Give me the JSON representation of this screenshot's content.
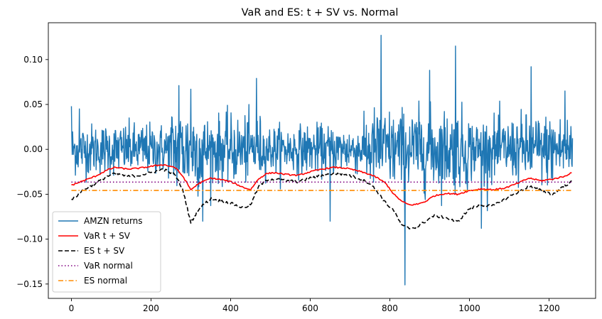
{
  "chart_data": {
    "type": "line",
    "title": "VaR and ES: t + SV vs. Normal",
    "xlabel": "",
    "ylabel": "",
    "xlim": [
      -58,
      1317
    ],
    "ylim": [
      -0.166,
      0.141
    ],
    "xticks": [
      0,
      200,
      400,
      600,
      800,
      1000,
      1200
    ],
    "xtick_labels": [
      "0",
      "200",
      "400",
      "600",
      "800",
      "1000",
      "1200"
    ],
    "yticks": [
      -0.15,
      -0.1,
      -0.05,
      0.0,
      0.05,
      0.1
    ],
    "ytick_labels": [
      "−0.15",
      "−0.10",
      "−0.05",
      "0.00",
      "0.05",
      "0.10"
    ],
    "grid": false,
    "legend_position": "lower-left",
    "n_points": 1260,
    "series": [
      {
        "name": "AMZN returns",
        "color": "#1f77b4",
        "style": "solid",
        "description_points": [
          [
            0,
            0.048
          ],
          [
            20,
            0.045
          ],
          [
            270,
            0.071
          ],
          [
            300,
            0.067
          ],
          [
            330,
            -0.08
          ],
          [
            465,
            0.079
          ],
          [
            650,
            -0.08
          ],
          [
            778,
            0.127
          ],
          [
            838,
            -0.151
          ],
          [
            900,
            0.088
          ],
          [
            965,
            0.115
          ],
          [
            1030,
            -0.088
          ],
          [
            1155,
            0.092
          ],
          [
            1240,
            0.065
          ]
        ]
      },
      {
        "name": "VaR t + SV",
        "color": "#ff0000",
        "style": "solid",
        "x": [
          0,
          30,
          60,
          90,
          110,
          140,
          170,
          200,
          230,
          260,
          280,
          300,
          320,
          350,
          380,
          400,
          430,
          450,
          470,
          490,
          510,
          540,
          570,
          600,
          630,
          660,
          690,
          720,
          750,
          770,
          790,
          810,
          830,
          850,
          870,
          890,
          910,
          940,
          970,
          1000,
          1030,
          1060,
          1090,
          1120,
          1150,
          1180,
          1210,
          1240,
          1259
        ],
        "values": [
          -0.04,
          -0.035,
          -0.03,
          -0.023,
          -0.02,
          -0.022,
          -0.021,
          -0.019,
          -0.017,
          -0.02,
          -0.03,
          -0.045,
          -0.038,
          -0.032,
          -0.034,
          -0.036,
          -0.042,
          -0.045,
          -0.033,
          -0.027,
          -0.026,
          -0.028,
          -0.029,
          -0.025,
          -0.022,
          -0.02,
          -0.021,
          -0.024,
          -0.028,
          -0.032,
          -0.038,
          -0.05,
          -0.058,
          -0.062,
          -0.061,
          -0.058,
          -0.052,
          -0.049,
          -0.05,
          -0.046,
          -0.044,
          -0.045,
          -0.043,
          -0.038,
          -0.032,
          -0.035,
          -0.033,
          -0.03,
          -0.025
        ]
      },
      {
        "name": "ES t + SV",
        "color": "#000000",
        "style": "dashed",
        "x": [
          0,
          30,
          60,
          90,
          110,
          140,
          170,
          200,
          230,
          260,
          280,
          300,
          320,
          350,
          380,
          400,
          430,
          450,
          470,
          490,
          510,
          540,
          570,
          600,
          630,
          660,
          690,
          720,
          750,
          770,
          790,
          810,
          830,
          850,
          870,
          890,
          910,
          940,
          970,
          1000,
          1030,
          1060,
          1090,
          1120,
          1150,
          1180,
          1210,
          1240,
          1259
        ],
        "values": [
          -0.057,
          -0.045,
          -0.038,
          -0.03,
          -0.027,
          -0.03,
          -0.029,
          -0.026,
          -0.022,
          -0.028,
          -0.045,
          -0.082,
          -0.066,
          -0.055,
          -0.058,
          -0.06,
          -0.065,
          -0.062,
          -0.042,
          -0.034,
          -0.033,
          -0.035,
          -0.036,
          -0.032,
          -0.029,
          -0.027,
          -0.028,
          -0.032,
          -0.038,
          -0.048,
          -0.06,
          -0.068,
          -0.085,
          -0.088,
          -0.086,
          -0.08,
          -0.074,
          -0.076,
          -0.081,
          -0.066,
          -0.062,
          -0.063,
          -0.055,
          -0.048,
          -0.041,
          -0.046,
          -0.05,
          -0.04,
          -0.036
        ]
      },
      {
        "name": "VaR normal",
        "color": "#800080",
        "style": "dotted",
        "x": [
          0,
          1259
        ],
        "values": [
          -0.0365,
          -0.0365
        ]
      },
      {
        "name": "ES normal",
        "color": "#ff8c00",
        "style": "dashdot",
        "x": [
          0,
          1259
        ],
        "values": [
          -0.0458,
          -0.0458
        ]
      }
    ]
  }
}
